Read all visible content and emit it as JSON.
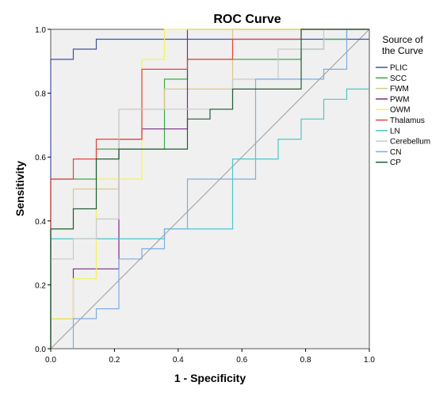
{
  "chart_data": {
    "type": "line",
    "title": "ROC Curve",
    "xlabel": "1 - Specificity",
    "ylabel": "Sensitivity",
    "xlim": [
      0,
      1
    ],
    "ylim": [
      0,
      1
    ],
    "xticks": [
      "0.0",
      "0.2",
      "0.4",
      "0.6",
      "0.8",
      "1.0"
    ],
    "yticks": [
      "0.0",
      "0.2",
      "0.4",
      "0.6",
      "0.8",
      "1.0"
    ],
    "grid": false,
    "legend": {
      "title_line1": "Source of",
      "title_line2": "the Curve",
      "placement": "right"
    },
    "series": [
      {
        "name": "PLIC",
        "color": "#3f51a8",
        "step": true,
        "x": [
          0,
          0,
          0.071,
          0.071,
          0.143,
          0.143,
          1
        ],
        "y": [
          0,
          0.906,
          0.906,
          0.938,
          0.938,
          0.969,
          0.969
        ]
      },
      {
        "name": "SCC",
        "color": "#3aa94a",
        "step": true,
        "x": [
          0,
          0,
          0.143,
          0.143,
          0.357,
          0.357,
          0.429,
          0.429,
          0.786,
          0.786,
          0.857,
          0.857,
          0.929,
          0.929,
          1
        ],
        "y": [
          0,
          0.531,
          0.531,
          0.625,
          0.625,
          0.844,
          0.844,
          0.906,
          0.906,
          0.938,
          0.938,
          0.969,
          0.969,
          1.0,
          1.0
        ]
      },
      {
        "name": "FWM",
        "color": "#d9c78a",
        "step": true,
        "x": [
          0,
          0,
          0.071,
          0.071,
          0.214,
          0.214,
          0.357,
          0.357,
          0.571,
          0.571,
          0.786,
          0.786,
          1
        ],
        "y": [
          0,
          0.375,
          0.375,
          0.5,
          0.5,
          0.75,
          0.75,
          0.813,
          0.813,
          1.0,
          1.0,
          1.0,
          1.0
        ]
      },
      {
        "name": "PWM",
        "color": "#7b2b86",
        "step": true,
        "x": [
          0,
          0,
          0.071,
          0.071,
          0.214,
          0.214,
          0.286,
          0.286,
          0.429,
          0.429,
          1
        ],
        "y": [
          0,
          0.094,
          0.094,
          0.25,
          0.25,
          0.656,
          0.656,
          0.688,
          0.688,
          1.0,
          1.0
        ]
      },
      {
        "name": "OWM",
        "color": "#f3f25a",
        "step": true,
        "x": [
          0,
          0,
          0.071,
          0.071,
          0.143,
          0.143,
          0.286,
          0.286,
          0.357,
          0.357,
          1
        ],
        "y": [
          0,
          0.094,
          0.094,
          0.219,
          0.219,
          0.531,
          0.531,
          0.906,
          0.906,
          1.0,
          1.0
        ]
      },
      {
        "name": "Thalamus",
        "color": "#e8413e",
        "step": true,
        "x": [
          0,
          0,
          0.071,
          0.071,
          0.143,
          0.143,
          0.286,
          0.286,
          0.429,
          0.429,
          0.571,
          0.571,
          0.786,
          0.786,
          1
        ],
        "y": [
          0,
          0.531,
          0.531,
          0.594,
          0.594,
          0.656,
          0.656,
          0.875,
          0.875,
          0.906,
          0.906,
          0.969,
          0.969,
          1.0,
          1.0
        ]
      },
      {
        "name": "LN",
        "color": "#4cc6c9",
        "step": true,
        "x": [
          0,
          0,
          0.214,
          0.214,
          0.357,
          0.357,
          0.571,
          0.571,
          0.714,
          0.714,
          0.786,
          0.786,
          0.857,
          0.857,
          0.929,
          0.929,
          1
        ],
        "y": [
          0,
          0.344,
          0.344,
          0.344,
          0.344,
          0.375,
          0.375,
          0.594,
          0.594,
          0.656,
          0.656,
          0.719,
          0.719,
          0.781,
          0.781,
          0.813,
          0.813
        ]
      },
      {
        "name": "Cerebellum",
        "color": "#c9c9c9",
        "step": true,
        "x": [
          0,
          0,
          0.071,
          0.071,
          0.143,
          0.143,
          0.214,
          0.214,
          0.571,
          0.571,
          0.714,
          0.714,
          0.857,
          0.857,
          1
        ],
        "y": [
          0,
          0.281,
          0.281,
          0.344,
          0.344,
          0.406,
          0.406,
          0.75,
          0.75,
          0.844,
          0.844,
          0.938,
          0.938,
          1.0,
          1.0
        ]
      },
      {
        "name": "CN",
        "color": "#7aaee0",
        "step": true,
        "x": [
          0.071,
          0.071,
          0.143,
          0.143,
          0.214,
          0.214,
          0.286,
          0.286,
          0.357,
          0.357,
          0.429,
          0.429,
          0.643,
          0.643,
          0.857,
          0.857,
          0.929,
          0.929,
          1
        ],
        "y": [
          0,
          0.094,
          0.094,
          0.125,
          0.125,
          0.281,
          0.281,
          0.313,
          0.313,
          0.375,
          0.375,
          0.531,
          0.531,
          0.844,
          0.844,
          0.875,
          0.875,
          1.0,
          1.0
        ]
      },
      {
        "name": "CP",
        "color": "#1e5e36",
        "step": true,
        "x": [
          0,
          0,
          0.071,
          0.071,
          0.143,
          0.143,
          0.214,
          0.214,
          0.429,
          0.429,
          0.5,
          0.5,
          0.571,
          0.571,
          0.786,
          0.786,
          1
        ],
        "y": [
          0,
          0.375,
          0.375,
          0.438,
          0.438,
          0.594,
          0.594,
          0.625,
          0.625,
          0.719,
          0.719,
          0.75,
          0.75,
          0.813,
          0.813,
          1.0,
          1.0
        ]
      }
    ]
  }
}
